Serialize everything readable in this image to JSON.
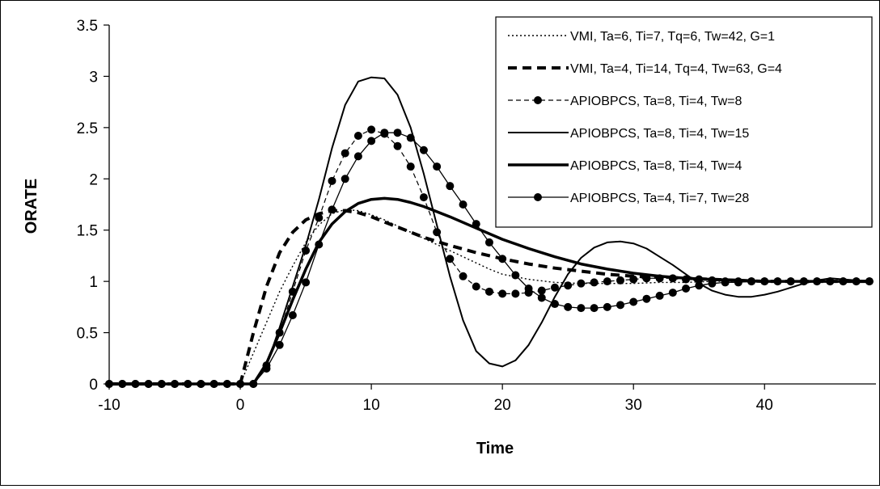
{
  "chart_data": {
    "type": "line",
    "title": "",
    "xlabel": "Time",
    "ylabel": "ORATE",
    "xlim": [
      -10,
      48.5
    ],
    "ylim": [
      0,
      3.5
    ],
    "xticks": [
      -10,
      0,
      10,
      20,
      30,
      40
    ],
    "xtick_labels": [
      "-10",
      "0",
      "10",
      "20",
      "30",
      "40"
    ],
    "yticks": [
      0,
      0.5,
      1,
      1.5,
      2,
      2.5,
      3,
      3.5
    ],
    "ytick_labels": [
      "0",
      "0.5",
      "1",
      "1.5",
      "2",
      "2.5",
      "3",
      "3.5"
    ],
    "grid": false,
    "legend_position": "top-right",
    "series": [
      {
        "name": "VMI, Ta=6, Ti=7, Tq=6, Tw=42, G=1",
        "style": "dotted-thin",
        "color": "#000000",
        "x": [
          -10,
          0,
          1,
          2,
          3,
          4,
          5,
          6,
          7,
          8,
          9,
          10,
          11,
          12,
          13,
          14,
          15,
          16,
          17,
          18,
          19,
          20,
          22,
          24,
          26,
          28,
          30,
          32,
          34,
          36,
          38,
          40,
          44,
          48
        ],
        "y": [
          0,
          0,
          0.3,
          0.6,
          0.9,
          1.15,
          1.38,
          1.55,
          1.66,
          1.7,
          1.69,
          1.65,
          1.6,
          1.54,
          1.48,
          1.42,
          1.36,
          1.3,
          1.24,
          1.18,
          1.12,
          1.07,
          1.02,
          0.99,
          0.98,
          0.98,
          0.98,
          0.99,
          0.99,
          1.0,
          1.0,
          1.0,
          1.0,
          1.0
        ]
      },
      {
        "name": "VMI, Ta=4, Ti=14, Tq=4, Tw=63, G=4",
        "style": "dashed-thick",
        "color": "#000000",
        "x": [
          -10,
          0,
          1,
          2,
          3,
          4,
          5,
          6,
          7,
          8,
          9,
          10,
          11,
          12,
          13,
          14,
          15,
          16,
          18,
          20,
          22,
          24,
          26,
          28,
          30,
          32,
          34,
          36,
          38,
          40,
          44,
          48
        ],
        "y": [
          0,
          0,
          0.5,
          0.95,
          1.28,
          1.48,
          1.6,
          1.66,
          1.69,
          1.69,
          1.67,
          1.63,
          1.58,
          1.53,
          1.48,
          1.43,
          1.39,
          1.35,
          1.28,
          1.22,
          1.17,
          1.13,
          1.1,
          1.07,
          1.05,
          1.04,
          1.03,
          1.02,
          1.01,
          1.0,
          1.0,
          1.0
        ]
      },
      {
        "name": "APIOBPCS, Ta=8, Ti=4, Tw=8",
        "style": "dashed-thin-markers",
        "color": "#000000",
        "x": [
          -10,
          -9,
          -8,
          -7,
          -6,
          -5,
          -4,
          -3,
          -2,
          -1,
          0,
          1,
          2,
          3,
          4,
          5,
          6,
          7,
          8,
          9,
          10,
          11,
          12,
          13,
          14,
          15,
          16,
          17,
          18,
          19,
          20,
          21,
          22,
          23,
          24,
          25,
          26,
          27,
          28,
          29,
          30,
          31,
          32,
          33,
          34,
          35,
          36,
          37,
          38,
          39,
          40,
          41,
          42,
          43,
          44,
          45,
          46,
          47,
          48
        ],
        "y": [
          0,
          0,
          0,
          0,
          0,
          0,
          0,
          0,
          0,
          0,
          0,
          0,
          0.18,
          0.5,
          0.9,
          1.3,
          1.62,
          1.98,
          2.25,
          2.42,
          2.48,
          2.44,
          2.32,
          2.12,
          1.82,
          1.48,
          1.22,
          1.05,
          0.95,
          0.9,
          0.88,
          0.88,
          0.89,
          0.91,
          0.94,
          0.96,
          0.98,
          0.99,
          1.0,
          1.01,
          1.02,
          1.03,
          1.03,
          1.03,
          1.02,
          1.02,
          1.01,
          1.0,
          1.0,
          1.0,
          1.0,
          1.0,
          1.0,
          1.0,
          1.0,
          1.0,
          1.0,
          1.0,
          1.0
        ]
      },
      {
        "name": "APIOBPCS, Ta=8, Ti=4, Tw=15",
        "style": "solid-thin",
        "color": "#000000",
        "x": [
          -10,
          0,
          1,
          2,
          3,
          4,
          5,
          6,
          7,
          8,
          9,
          10,
          11,
          12,
          13,
          14,
          15,
          16,
          17,
          18,
          19,
          20,
          21,
          22,
          23,
          24,
          25,
          26,
          27,
          28,
          29,
          30,
          31,
          32,
          33,
          34,
          35,
          36,
          37,
          38,
          39,
          40,
          41,
          42,
          43,
          44,
          45,
          46,
          47,
          48
        ],
        "y": [
          0,
          0,
          0,
          0.18,
          0.55,
          0.95,
          1.35,
          1.8,
          2.3,
          2.72,
          2.95,
          2.99,
          2.98,
          2.82,
          2.5,
          2.05,
          1.55,
          1.05,
          0.62,
          0.32,
          0.2,
          0.17,
          0.23,
          0.38,
          0.6,
          0.85,
          1.07,
          1.23,
          1.33,
          1.38,
          1.39,
          1.37,
          1.32,
          1.24,
          1.16,
          1.07,
          0.98,
          0.91,
          0.87,
          0.85,
          0.85,
          0.87,
          0.9,
          0.94,
          0.98,
          1.01,
          1.03,
          1.02,
          1.01,
          1.0
        ]
      },
      {
        "name": "APIOBPCS, Ta=8, Ti=4, Tw=4",
        "style": "solid-thick",
        "color": "#000000",
        "x": [
          -10,
          0,
          1,
          2,
          3,
          4,
          5,
          6,
          7,
          8,
          9,
          10,
          11,
          12,
          13,
          14,
          15,
          16,
          18,
          20,
          22,
          24,
          26,
          28,
          30,
          32,
          34,
          36,
          38,
          40,
          44,
          48
        ],
        "y": [
          0,
          0,
          0,
          0.2,
          0.5,
          0.82,
          1.12,
          1.38,
          1.56,
          1.68,
          1.76,
          1.8,
          1.81,
          1.8,
          1.77,
          1.73,
          1.68,
          1.63,
          1.52,
          1.41,
          1.32,
          1.24,
          1.17,
          1.12,
          1.08,
          1.05,
          1.03,
          1.02,
          1.01,
          1.0,
          1.0,
          1.0
        ]
      },
      {
        "name": "APIOBPCS, Ta=4, Ti=7, Tw=28",
        "style": "solid-thin-markers",
        "color": "#000000",
        "x": [
          -10,
          -9,
          -8,
          -7,
          -6,
          -5,
          -4,
          -3,
          -2,
          -1,
          0,
          1,
          2,
          3,
          4,
          5,
          6,
          7,
          8,
          9,
          10,
          11,
          12,
          13,
          14,
          15,
          16,
          17,
          18,
          19,
          20,
          21,
          22,
          23,
          24,
          25,
          26,
          27,
          28,
          29,
          30,
          31,
          32,
          33,
          34,
          35,
          36,
          37,
          38,
          39,
          40,
          41,
          42,
          43,
          44,
          45,
          46,
          47,
          48
        ],
        "y": [
          0,
          0,
          0,
          0,
          0,
          0,
          0,
          0,
          0,
          0,
          0,
          0,
          0.15,
          0.38,
          0.67,
          0.99,
          1.36,
          1.7,
          2.0,
          2.22,
          2.37,
          2.45,
          2.45,
          2.4,
          2.28,
          2.12,
          1.93,
          1.75,
          1.56,
          1.38,
          1.22,
          1.06,
          0.93,
          0.84,
          0.78,
          0.75,
          0.74,
          0.74,
          0.75,
          0.77,
          0.8,
          0.83,
          0.86,
          0.89,
          0.93,
          0.96,
          0.98,
          0.99,
          0.99,
          1.0,
          1.0,
          1.0,
          1.0,
          1.0,
          1.0,
          1.0,
          1.0,
          1.0,
          1.0
        ]
      }
    ]
  }
}
